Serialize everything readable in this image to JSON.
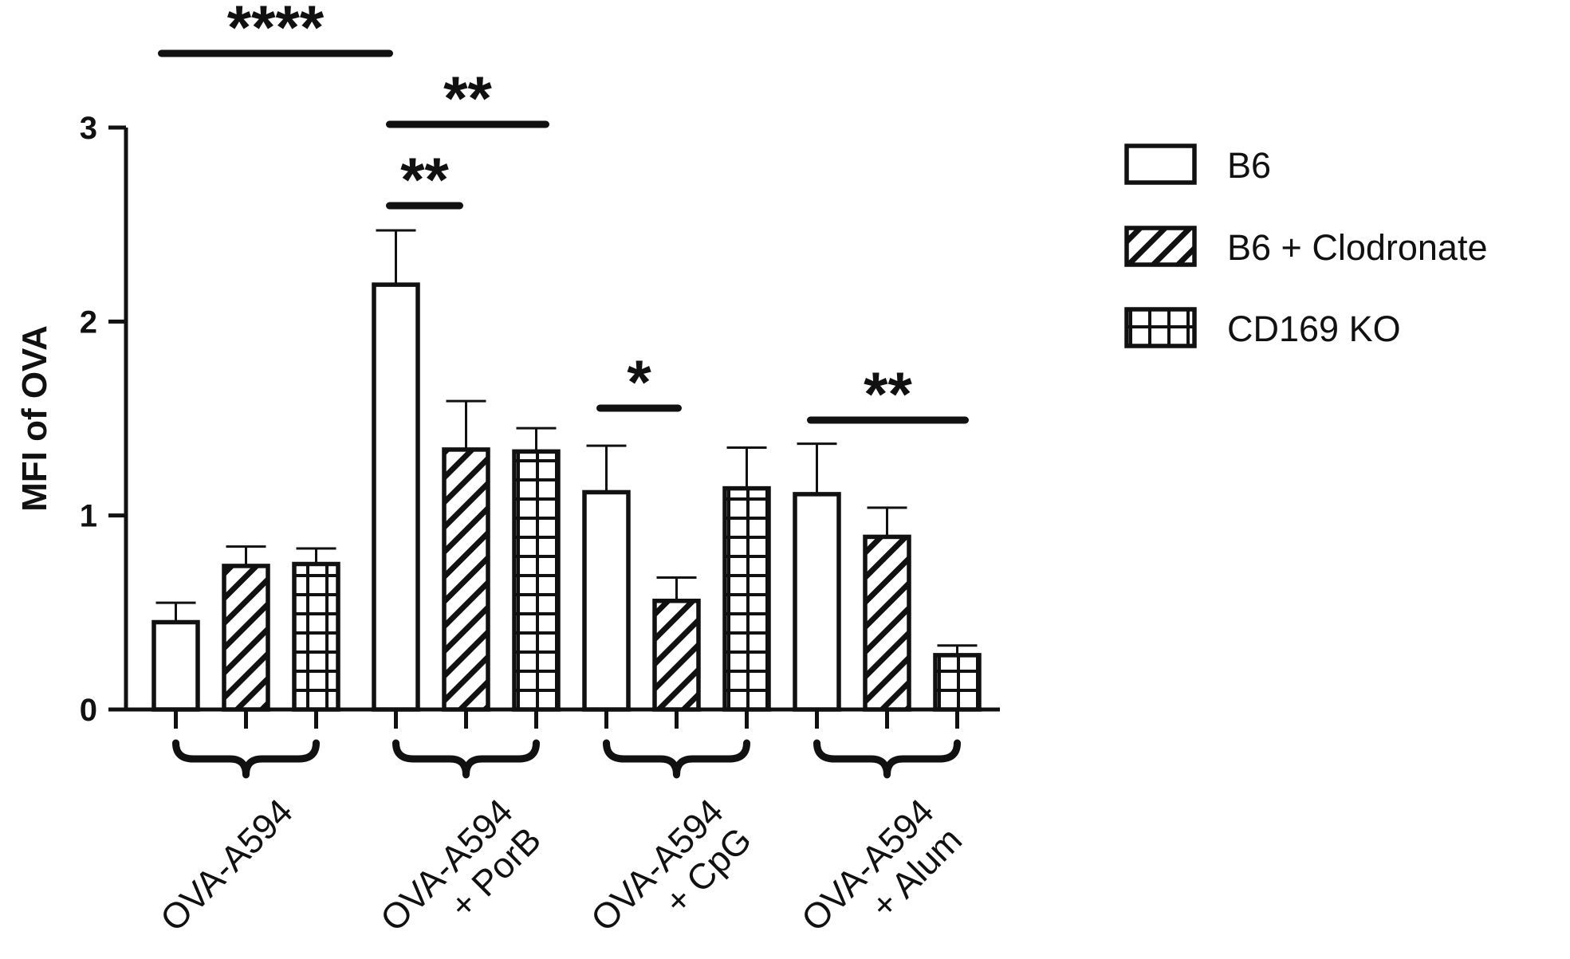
{
  "chart_data": {
    "type": "bar",
    "title": "",
    "xlabel": "",
    "ylabel": "MFI of OVA",
    "ylim": [
      0,
      3
    ],
    "yticks": [
      0,
      1,
      2,
      3
    ],
    "yticklabels": [
      "0",
      "1",
      "2",
      "3"
    ],
    "grid": false,
    "legend_position": "top-right",
    "categories": [
      [
        "OVA-A594"
      ],
      [
        "OVA-A594",
        "+ PorB"
      ],
      [
        "OVA-A594",
        "+ CpG"
      ],
      [
        "OVA-A594",
        "+ Alum"
      ]
    ],
    "series": [
      {
        "name": "B6",
        "pattern": "open",
        "values": [
          0.45,
          2.19,
          1.12,
          1.11
        ],
        "errors": [
          0.1,
          0.28,
          0.24,
          0.26
        ]
      },
      {
        "name": "B6 + Clodronate",
        "pattern": "diagonal-hatch",
        "values": [
          0.74,
          1.34,
          0.56,
          0.89
        ],
        "errors": [
          0.1,
          0.25,
          0.12,
          0.15
        ]
      },
      {
        "name": "CD169 KO",
        "pattern": "grid",
        "values": [
          0.75,
          1.33,
          1.14,
          0.28
        ],
        "errors": [
          0.08,
          0.12,
          0.21,
          0.05
        ]
      }
    ],
    "significance": [
      {
        "label": "****",
        "from": [
          0,
          0
        ],
        "to": [
          1,
          0
        ]
      },
      {
        "label": "**",
        "from": [
          1,
          0
        ],
        "to": [
          1,
          2
        ]
      },
      {
        "label": "**",
        "from": [
          1,
          0
        ],
        "to": [
          1,
          1
        ]
      },
      {
        "label": "*",
        "from": [
          2,
          0
        ],
        "to": [
          2,
          1
        ]
      },
      {
        "label": "**",
        "from": [
          3,
          0
        ],
        "to": [
          3,
          2
        ]
      }
    ],
    "colors": {
      "ink": "#111111",
      "fill": "#ffffff"
    }
  }
}
